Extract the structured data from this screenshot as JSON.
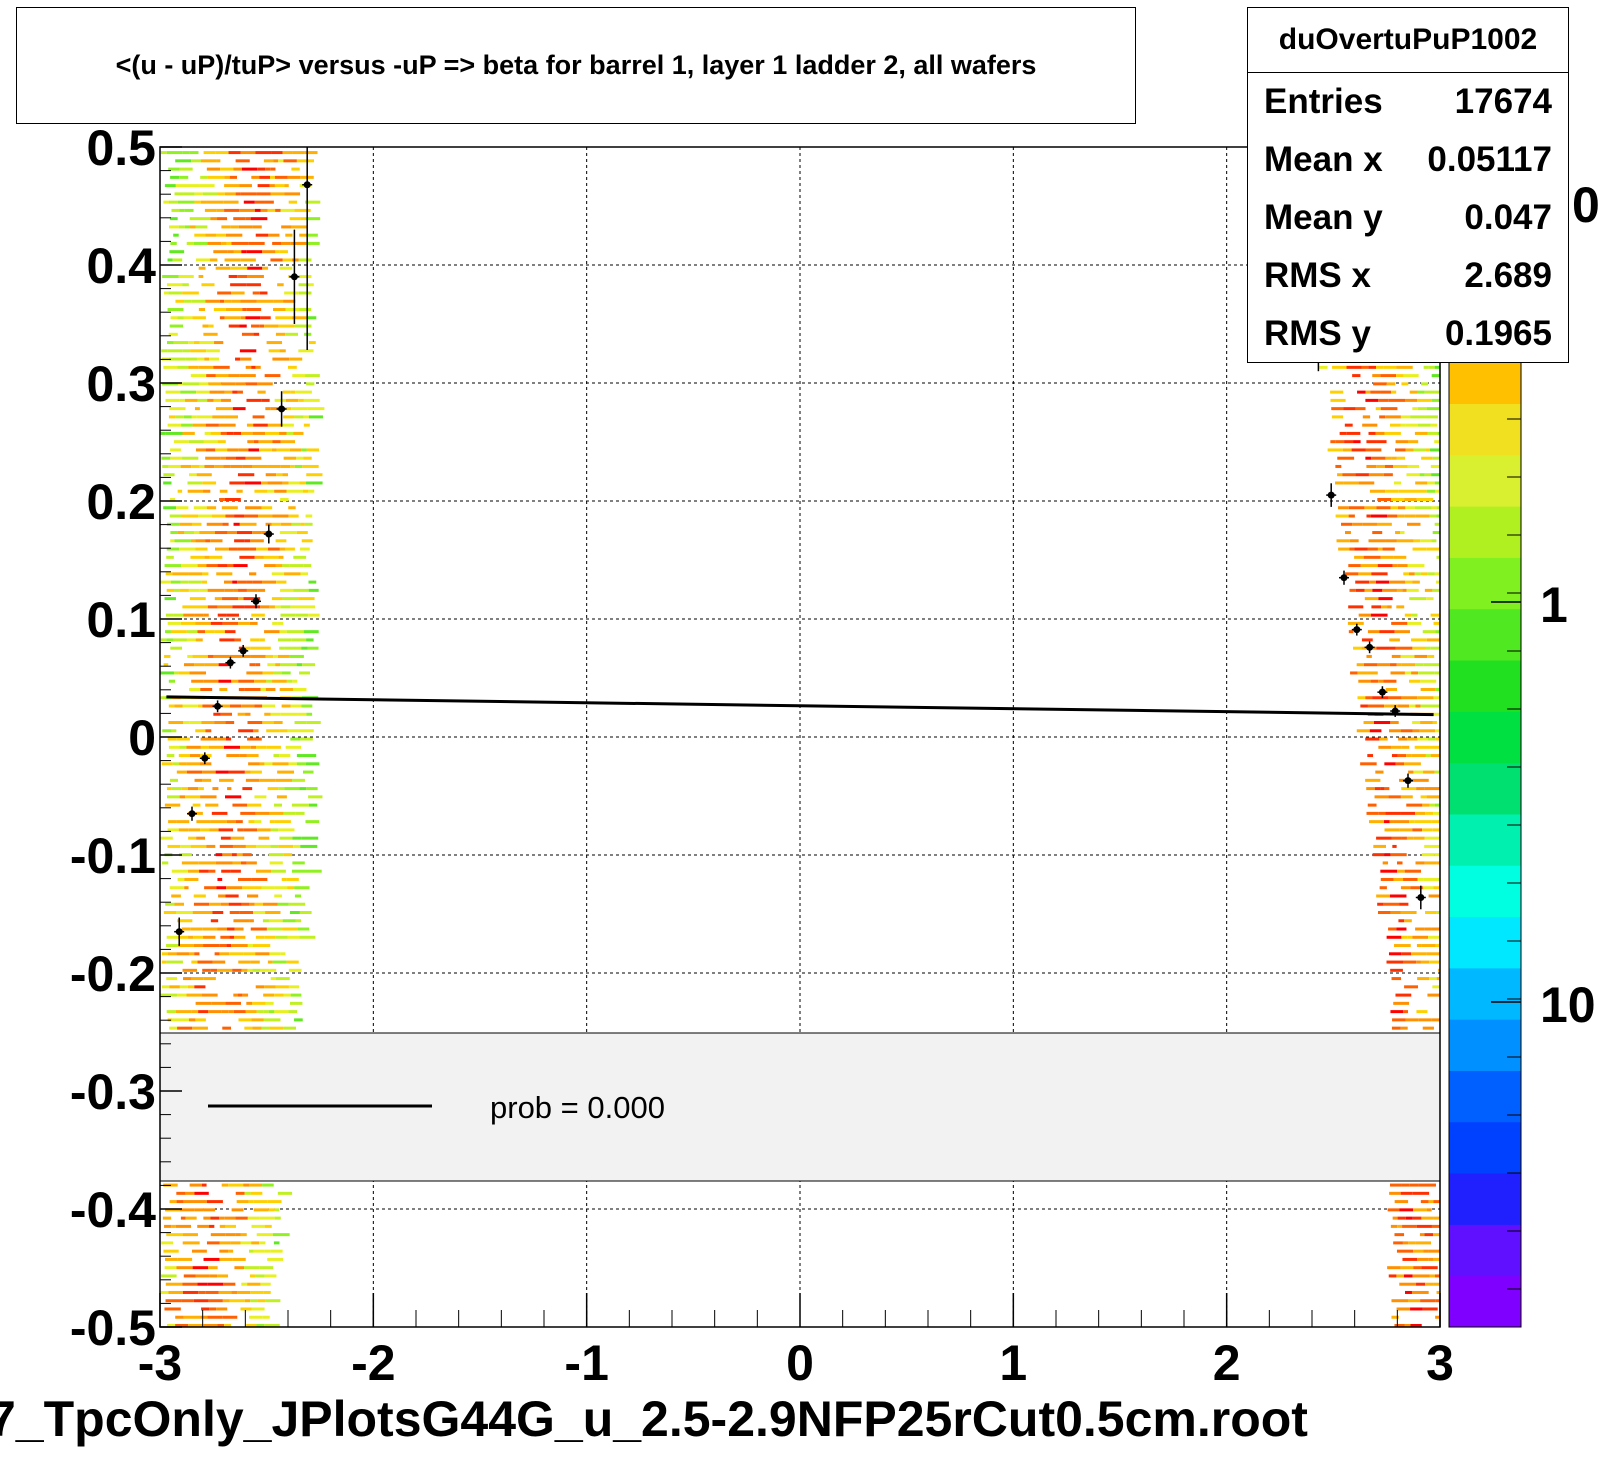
{
  "title": "<(u - uP)/tuP> versus  -uP => beta for barrel 1, layer 1 ladder 2, all wafers",
  "stats": {
    "name": "duOvertuPuP1002",
    "rows": [
      {
        "label": "Entries",
        "value": "17674"
      },
      {
        "label": "Mean x",
        "value": "0.05117"
      },
      {
        "label": "Mean y",
        "value": "0.047"
      },
      {
        "label": "RMS x",
        "value": "2.689"
      },
      {
        "label": "RMS y",
        "value": "0.1965"
      }
    ]
  },
  "legend": {
    "label": "prob = 0.000"
  },
  "footer": "7_TpcOnly_JPlotsG44G_u_2.5-2.9NFP25rCut0.5cm.root",
  "colorbar": {
    "tick_labels": [
      "0",
      "1",
      "10"
    ],
    "colors": [
      "#8000ff",
      "#6010ff",
      "#2020ff",
      "#0040ff",
      "#0060ff",
      "#0090ff",
      "#00b8ff",
      "#00e8ff",
      "#00ffe0",
      "#00f0b0",
      "#00e070",
      "#00e040",
      "#20e020",
      "#50e820",
      "#80f020",
      "#b0f020",
      "#d8f030",
      "#f0e020",
      "#ffc000",
      "#ff9000",
      "#ff6000",
      "#ff3000",
      "#e81000"
    ]
  },
  "chart_data": {
    "type": "scatter",
    "title": "<(u - uP)/tuP> versus  -uP => beta for barrel 1, layer 1 ladder 2, all wafers",
    "xlabel": "",
    "ylabel": "",
    "xlim": [
      -3,
      3
    ],
    "ylim": [
      -0.5,
      0.5
    ],
    "x_ticks": [
      "-3",
      "-2",
      "-1",
      "0",
      "1",
      "2",
      "3"
    ],
    "y_ticks": [
      "-0.5",
      "-0.4",
      "-0.3",
      "-0.2",
      "-0.1",
      "0",
      "0.1",
      "0.2",
      "0.3",
      "0.4",
      "0.5"
    ],
    "grid": true,
    "profile_points": [
      {
        "x": -2.91,
        "y": -0.165,
        "err": 0.012
      },
      {
        "x": -2.85,
        "y": -0.065,
        "err": 0.006
      },
      {
        "x": -2.79,
        "y": -0.018,
        "err": 0.005
      },
      {
        "x": -2.73,
        "y": 0.026,
        "err": 0.005
      },
      {
        "x": -2.67,
        "y": 0.063,
        "err": 0.005
      },
      {
        "x": -2.61,
        "y": 0.073,
        "err": 0.005
      },
      {
        "x": -2.55,
        "y": 0.115,
        "err": 0.006
      },
      {
        "x": -2.49,
        "y": 0.172,
        "err": 0.008
      },
      {
        "x": -2.43,
        "y": 0.278,
        "err": 0.015
      },
      {
        "x": -2.37,
        "y": 0.39,
        "err": 0.04
      },
      {
        "x": -2.31,
        "y": 0.468,
        "err": 0.14
      },
      {
        "x": 2.37,
        "y": 0.435,
        "err": 0.07
      },
      {
        "x": 2.43,
        "y": 0.335,
        "err": 0.025
      },
      {
        "x": 2.49,
        "y": 0.205,
        "err": 0.01
      },
      {
        "x": 2.55,
        "y": 0.135,
        "err": 0.006
      },
      {
        "x": 2.61,
        "y": 0.091,
        "err": 0.005
      },
      {
        "x": 2.67,
        "y": 0.076,
        "err": 0.005
      },
      {
        "x": 2.73,
        "y": 0.038,
        "err": 0.005
      },
      {
        "x": 2.79,
        "y": 0.022,
        "err": 0.005
      },
      {
        "x": 2.85,
        "y": -0.037,
        "err": 0.006
      },
      {
        "x": 2.91,
        "y": -0.136,
        "err": 0.01
      }
    ],
    "fit_line": {
      "x": [
        -2.97,
        2.97
      ],
      "y": [
        0.034,
        0.019
      ]
    },
    "density_bands": [
      {
        "x_min": -3.0,
        "x_max": -2.3
      },
      {
        "x_min": 2.4,
        "x_max": 3.0
      }
    ]
  }
}
